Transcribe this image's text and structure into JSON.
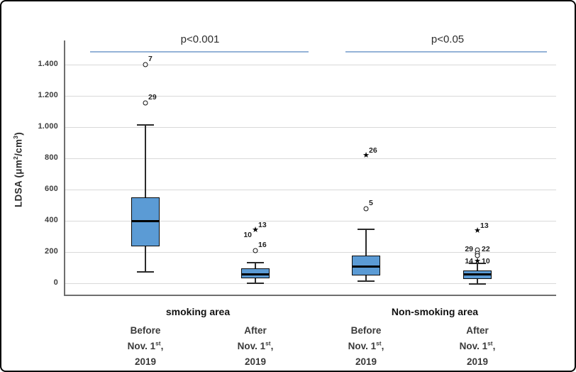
{
  "chart_data": {
    "type": "boxplot",
    "ylabel": "LDSA (μm^{2}/cm^{3})",
    "ylim": [
      0,
      1560
    ],
    "grid": true,
    "yticks": [
      {
        "label": "1.400",
        "value": 1400
      },
      {
        "label": "1.200",
        "value": 1200
      },
      {
        "label": "1.000",
        "value": 1000
      },
      {
        "label": "800",
        "value": 800
      },
      {
        "label": "600",
        "value": 600
      },
      {
        "label": "400",
        "value": 400
      },
      {
        "label": "200",
        "value": 200
      },
      {
        "label": "0",
        "value": 0
      }
    ],
    "groups": [
      {
        "label": "smoking area"
      },
      {
        "label": "Non-smoking area"
      }
    ],
    "significance": [
      {
        "label": "p<0.001"
      },
      {
        "label": "p<0.05"
      }
    ],
    "boxes": [
      {
        "group": "smoking area",
        "category_lines": [
          "Before",
          "Nov. 1^{st},",
          "2019"
        ],
        "whisker_low": 78,
        "q1": 237,
        "median": 400,
        "q3": 552,
        "whisker_high": 1017,
        "outliers": [
          {
            "marker": "circle",
            "value": 1400,
            "labels": [
              {
                "text": "7",
                "pos": "upper-right"
              }
            ]
          },
          {
            "marker": "circle",
            "value": 1155,
            "labels": [
              {
                "text": "29",
                "pos": "upper-right"
              }
            ]
          }
        ]
      },
      {
        "group": "smoking area",
        "category_lines": [
          "After",
          "Nov. 1^{st},",
          "2019"
        ],
        "whisker_low": 5,
        "q1": 32,
        "median": 59,
        "q3": 96,
        "whisker_high": 137,
        "outliers": [
          {
            "marker": "star",
            "value": 337,
            "labels": [
              {
                "text": "13",
                "pos": "upper-right"
              },
              {
                "text": "10",
                "pos": "lower-left"
              }
            ]
          },
          {
            "marker": "circle",
            "value": 210,
            "labels": [
              {
                "text": "16",
                "pos": "upper-right"
              }
            ]
          }
        ]
      },
      {
        "group": "Non-smoking area",
        "category_lines": [
          "Before",
          "Nov. 1^{st},",
          "2019"
        ],
        "whisker_low": 18,
        "q1": 50,
        "median": 109,
        "q3": 178,
        "whisker_high": 351,
        "outliers": [
          {
            "marker": "star",
            "value": 812,
            "labels": [
              {
                "text": "26",
                "pos": "upper-right"
              }
            ]
          },
          {
            "marker": "circle",
            "value": 479,
            "labels": [
              {
                "text": "5",
                "pos": "upper-right"
              }
            ]
          }
        ]
      },
      {
        "group": "Non-smoking area",
        "category_lines": [
          "After",
          "Nov. 1^{st},",
          "2019"
        ],
        "whisker_low": 2,
        "q1": 27,
        "median": 55,
        "q3": 82,
        "whisker_high": 130,
        "outliers": [
          {
            "marker": "star",
            "value": 333,
            "labels": [
              {
                "text": "13",
                "pos": "upper-right"
              }
            ]
          },
          {
            "marker": "circle",
            "value": 215,
            "labels": [
              {
                "text": "29",
                "pos": "left"
              },
              {
                "text": "22",
                "pos": "right"
              }
            ]
          },
          {
            "marker": "circle",
            "value": 192,
            "labels": []
          },
          {
            "marker": "circle",
            "value": 178,
            "labels": []
          },
          {
            "marker": "star",
            "value": 135,
            "labels": [
              {
                "text": "14",
                "pos": "left"
              },
              {
                "text": "10",
                "pos": "right"
              }
            ]
          }
        ]
      }
    ],
    "colors": {
      "box_fill": "#5B9BD5",
      "box_border": "#0a0a0a",
      "median": "#000000",
      "whisker": "#2b2b2b",
      "grid": "#d9d9d9",
      "axis": "#6e6e6e",
      "sig_line": "#95B3D7",
      "text": "#333333"
    }
  }
}
